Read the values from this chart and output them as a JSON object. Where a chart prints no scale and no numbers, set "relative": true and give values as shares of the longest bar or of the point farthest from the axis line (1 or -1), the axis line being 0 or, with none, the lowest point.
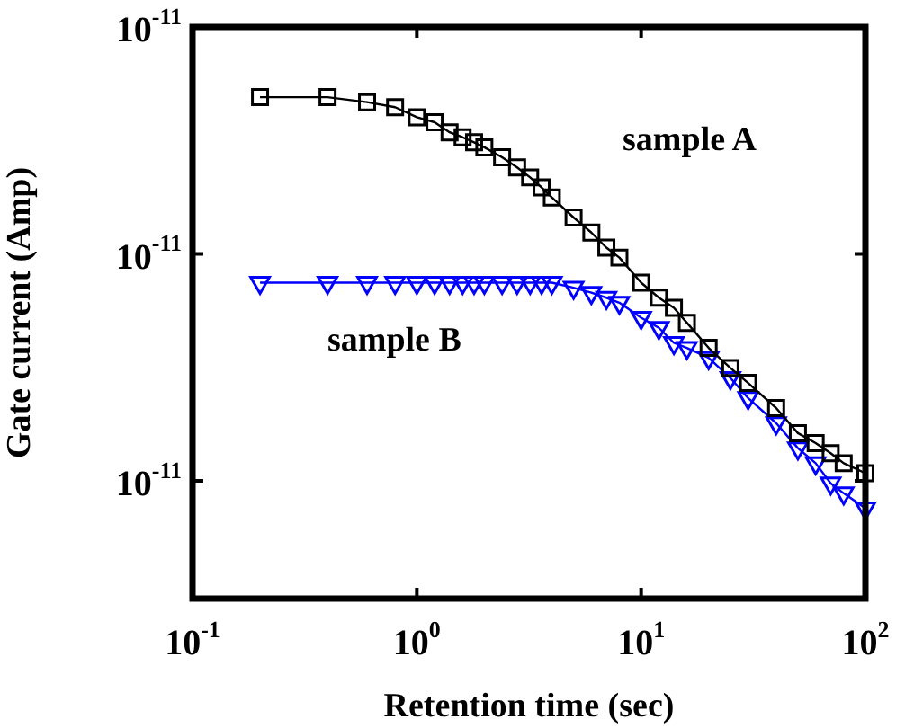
{
  "chart_data": {
    "type": "line",
    "xlabel": "Retention time (sec)",
    "ylabel": "Gate current (Amp)",
    "log": "x",
    "grid": false,
    "legend": false,
    "line_style": "solid",
    "relative": true,
    "annotations": [
      "10$^{-11}$",
      "10$^{-11}$",
      "10$^{-11}$"
    ],
    "xlim": [
      0.1,
      100
    ],
    "xticks": [
      {
        "value": 0.1,
        "label": "10$^{-1}$"
      },
      {
        "value": 1,
        "label": "10$^{0}$"
      },
      {
        "value": 10,
        "label": "10$^{1}$"
      },
      {
        "value": 100,
        "label": "10$^{2}$"
      }
    ],
    "x": [
      0.2,
      0.4,
      0.6,
      0.8,
      1,
      1.2,
      1.4,
      1.6,
      1.8,
      2,
      2.4,
      2.8,
      3.2,
      3.6,
      4,
      5,
      6,
      7,
      8,
      10,
      12,
      14,
      16,
      20,
      25,
      30,
      40,
      50,
      60,
      70,
      80,
      100
    ],
    "series": [
      {
        "name": "sample A",
        "color": "#000000",
        "marker": "square",
        "values": [
          1.0,
          1.0,
          0.99,
          0.98,
          0.96,
          0.95,
          0.93,
          0.92,
          0.91,
          0.9,
          0.88,
          0.86,
          0.84,
          0.82,
          0.8,
          0.76,
          0.73,
          0.7,
          0.68,
          0.63,
          0.6,
          0.58,
          0.55,
          0.5,
          0.46,
          0.43,
          0.38,
          0.33,
          0.31,
          0.29,
          0.27,
          0.25
        ]
      },
      {
        "name": "sample B",
        "color": "#0000ff",
        "marker": "triangle",
        "values": [
          0.63,
          0.63,
          0.63,
          0.63,
          0.63,
          0.63,
          0.63,
          0.63,
          0.63,
          0.63,
          0.63,
          0.63,
          0.63,
          0.63,
          0.63,
          0.62,
          0.61,
          0.6,
          0.59,
          0.56,
          0.54,
          0.51,
          0.5,
          0.48,
          0.44,
          0.4,
          0.35,
          0.3,
          0.27,
          0.23,
          0.21,
          0.18
        ]
      }
    ]
  }
}
